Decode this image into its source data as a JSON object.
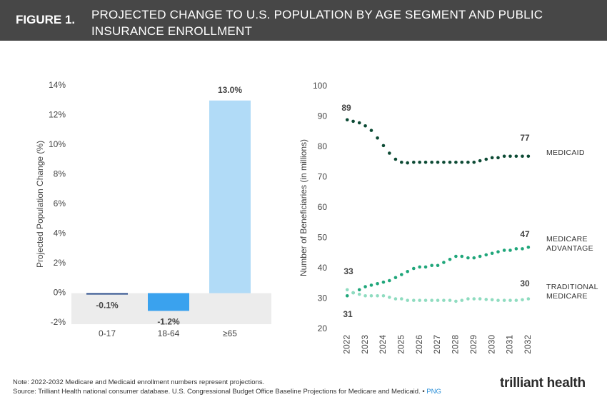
{
  "header": {
    "figure": "FIGURE 1.",
    "title": "PROJECTED CHANGE TO U.S. POPULATION BY AGE SEGMENT AND PUBLIC INSURANCE ENROLLMENT"
  },
  "chart_data": [
    {
      "type": "bar",
      "y_label": "Projected Population Change (%)",
      "categories": [
        "0-17",
        "18-64",
        "≥65"
      ],
      "values": [
        -0.1,
        -1.2,
        13.0
      ],
      "value_labels": [
        "-0.1%",
        "-1.2%",
        "13.0%"
      ],
      "colors": [
        "#2e4f8c",
        "#3aa2ee",
        "#b1dbf7"
      ],
      "ylim": [
        -2,
        14
      ],
      "yticks": [
        {
          "value": 14,
          "label": "14%"
        },
        {
          "value": 12,
          "label": "12%"
        },
        {
          "value": 10,
          "label": "10%"
        },
        {
          "value": 8,
          "label": "8%"
        },
        {
          "value": 6,
          "label": "6%"
        },
        {
          "value": 4,
          "label": "4%"
        },
        {
          "value": 2,
          "label": "2%"
        },
        {
          "value": 0,
          "label": "0%"
        },
        {
          "value": -2,
          "label": "-2%"
        }
      ],
      "grid": false
    },
    {
      "type": "dots",
      "y_label": "Number of Beneficiaries (in millions)",
      "x": [
        2022,
        2022.33,
        2022.67,
        2023,
        2023.33,
        2023.67,
        2024,
        2024.33,
        2024.67,
        2025,
        2025.33,
        2025.67,
        2026,
        2026.33,
        2026.67,
        2027,
        2027.33,
        2027.67,
        2028,
        2028.33,
        2028.67,
        2029,
        2029.33,
        2029.67,
        2030,
        2030.33,
        2030.67,
        2031,
        2031.33,
        2031.67,
        2032
      ],
      "series": [
        {
          "name": "MEDICAID",
          "color": "#0c4a34",
          "values": [
            89,
            88.5,
            88,
            87,
            85.5,
            83,
            80.5,
            78,
            76,
            75,
            74.8,
            75,
            75,
            75,
            75,
            75,
            75,
            75,
            75,
            75,
            75,
            75,
            75.5,
            76,
            76.5,
            76.5,
            77,
            77,
            77,
            77,
            77
          ]
        },
        {
          "name": "MEDICARE ADVANTAGE",
          "color": "#1fa67a",
          "values": [
            31,
            32,
            33,
            34,
            34.5,
            35,
            35.5,
            36,
            37,
            38,
            39,
            40,
            40.5,
            40.5,
            41,
            41,
            42,
            43,
            44,
            44,
            43.5,
            43.5,
            44,
            44.5,
            45,
            45.5,
            46,
            46,
            46.5,
            46.5,
            47
          ]
        },
        {
          "name": "TRADITIONAL MEDICARE",
          "color": "#8fdcc0",
          "values": [
            33,
            32,
            31.5,
            31,
            31,
            31,
            31,
            30.5,
            30,
            30,
            29.5,
            29.5,
            29.5,
            29.5,
            29.5,
            29.5,
            29.5,
            29.5,
            29.2,
            29.5,
            30,
            30,
            30,
            29.8,
            29.7,
            29.5,
            29.5,
            29.5,
            29.5,
            29.7,
            30
          ]
        }
      ],
      "xlim": [
        2021.4,
        2032.4
      ],
      "xticks": [
        2022,
        2023,
        2024,
        2025,
        2026,
        2027,
        2028,
        2029,
        2030,
        2031,
        2032
      ],
      "ylim": [
        20,
        100
      ],
      "yticks": [
        100,
        90,
        80,
        70,
        60,
        50,
        40,
        30,
        20
      ],
      "grid": false
    }
  ],
  "footer": {
    "note": "Note: 2022-2032 Medicare and Medicaid enrollment numbers represent projections.",
    "source": "Source: Trilliant Health national consumer database. U.S. Congressional Budget Office Baseline Projections for Medicare and Medicaid.",
    "separator": "•",
    "link": "PNG",
    "logo": "trilliant health"
  }
}
